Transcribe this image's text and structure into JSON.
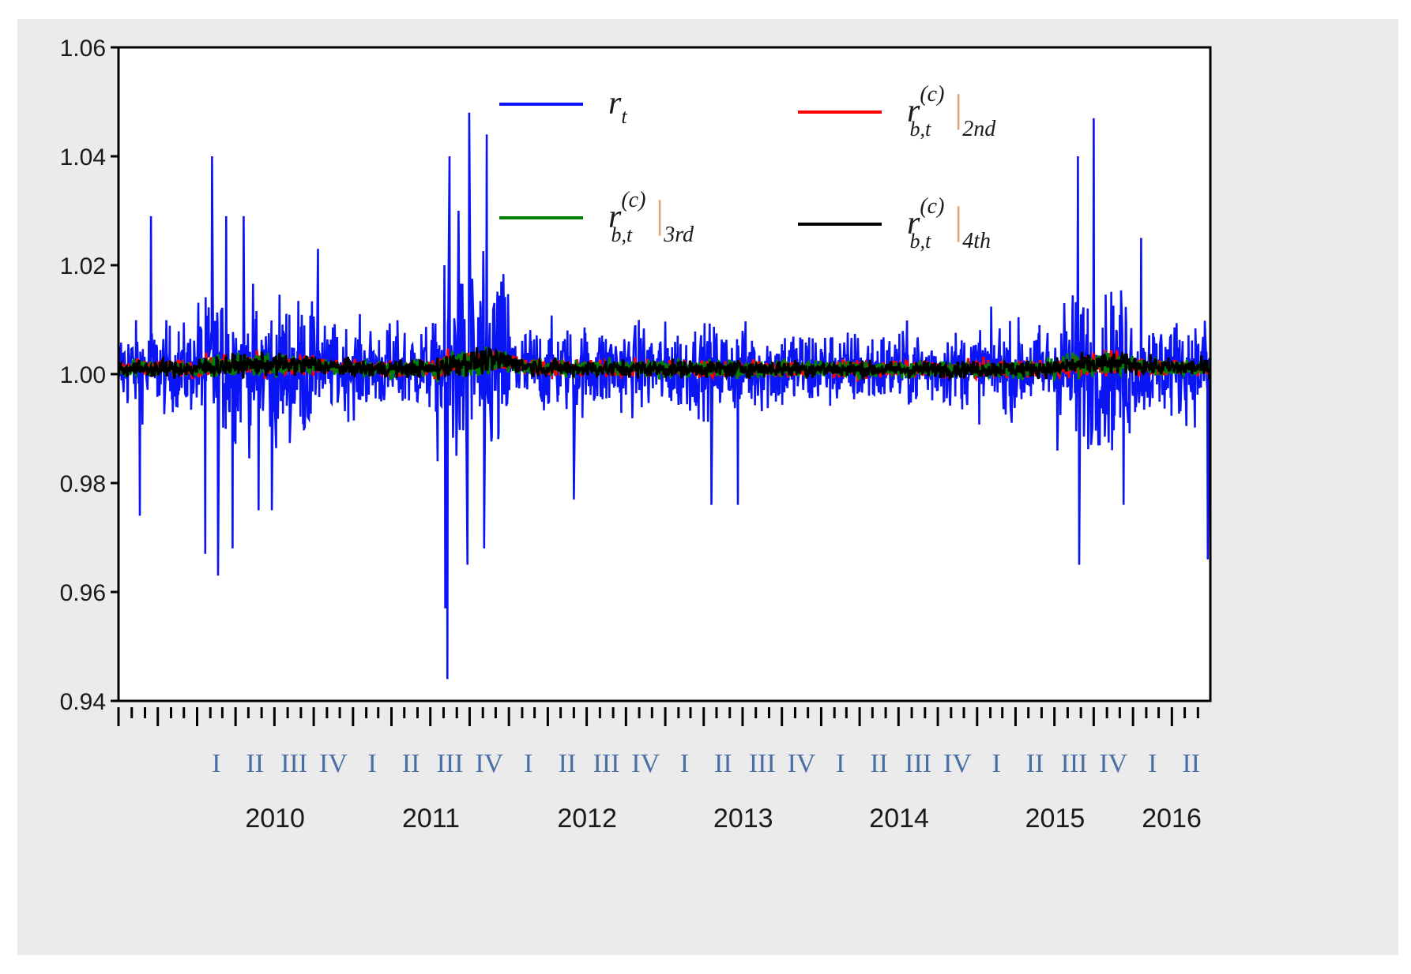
{
  "chart_data": {
    "type": "line",
    "title": "",
    "xlabel": "",
    "ylabel": "",
    "ylim": [
      0.94,
      1.06
    ],
    "yticks": [
      "0.94",
      "0.96",
      "0.98",
      "1.00",
      "1.02",
      "1.04",
      "1.06"
    ],
    "x_range": [
      "2009-07-01",
      "2016-06-30"
    ],
    "grid": false,
    "legend_position": "top",
    "quarter_labels": [
      "I",
      "II",
      "III",
      "IV",
      "I",
      "II",
      "III",
      "IV",
      "I",
      "II",
      "III",
      "IV",
      "I",
      "II",
      "III",
      "IV",
      "I",
      "II",
      "III",
      "IV",
      "I",
      "II",
      "III",
      "IV",
      "I",
      "II"
    ],
    "year_labels": [
      "2010",
      "2011",
      "2012",
      "2013",
      "2014",
      "2015",
      "2016"
    ],
    "volatility_regimes": [
      {
        "from": "2009-07-01",
        "to": "2009-12-31",
        "amp": 0.008
      },
      {
        "from": "2010-01-01",
        "to": "2010-09-30",
        "amp": 0.013
      },
      {
        "from": "2010-10-01",
        "to": "2011-07-15",
        "amp": 0.008
      },
      {
        "from": "2011-07-15",
        "to": "2011-12-31",
        "amp": 0.018
      },
      {
        "from": "2012-01-01",
        "to": "2012-12-31",
        "amp": 0.008
      },
      {
        "from": "2013-01-01",
        "to": "2013-12-31",
        "amp": 0.008
      },
      {
        "from": "2014-01-01",
        "to": "2014-12-31",
        "amp": 0.007
      },
      {
        "from": "2015-01-01",
        "to": "2015-06-30",
        "amp": 0.008
      },
      {
        "from": "2015-07-01",
        "to": "2015-12-31",
        "amp": 0.014
      },
      {
        "from": "2016-01-01",
        "to": "2016-06-30",
        "amp": 0.009
      }
    ],
    "series": [
      {
        "name": "r_t",
        "symbol": "r",
        "subscript": "t",
        "color": "#0a14f5",
        "extremes": [
          {
            "x": "2009-08-20",
            "y": 0.974
          },
          {
            "x": "2009-09-15",
            "y": 1.029
          },
          {
            "x": "2010-01-20",
            "y": 0.967
          },
          {
            "x": "2010-02-05",
            "y": 1.04
          },
          {
            "x": "2010-02-20",
            "y": 0.963
          },
          {
            "x": "2010-03-10",
            "y": 1.029
          },
          {
            "x": "2010-03-25",
            "y": 0.968
          },
          {
            "x": "2010-04-20",
            "y": 1.029
          },
          {
            "x": "2010-05-25",
            "y": 0.975
          },
          {
            "x": "2010-06-25",
            "y": 0.975
          },
          {
            "x": "2010-10-10",
            "y": 1.023
          },
          {
            "x": "2011-08-05",
            "y": 0.957
          },
          {
            "x": "2011-08-10",
            "y": 0.944
          },
          {
            "x": "2011-08-15",
            "y": 1.04
          },
          {
            "x": "2011-09-05",
            "y": 1.03
          },
          {
            "x": "2011-09-25",
            "y": 0.965
          },
          {
            "x": "2011-09-30",
            "y": 1.048
          },
          {
            "x": "2011-11-05",
            "y": 0.968
          },
          {
            "x": "2011-11-10",
            "y": 1.044
          },
          {
            "x": "2012-06-01",
            "y": 0.977
          },
          {
            "x": "2013-04-20",
            "y": 0.976
          },
          {
            "x": "2013-06-20",
            "y": 0.976
          },
          {
            "x": "2015-08-25",
            "y": 1.04
          },
          {
            "x": "2015-08-28",
            "y": 0.965
          },
          {
            "x": "2015-10-01",
            "y": 1.047
          },
          {
            "x": "2015-12-10",
            "y": 0.976
          },
          {
            "x": "2016-01-20",
            "y": 1.025
          },
          {
            "x": "2016-06-25",
            "y": 0.966
          }
        ]
      },
      {
        "name": "r_{b,t}^{(c)} |_{2nd}",
        "symbol": "r",
        "subscript": "b,t",
        "superscript": "(c)",
        "order": "2nd",
        "color": "#ff0000",
        "approx_level": 1.001,
        "approx_band": 0.002
      },
      {
        "name": "r_{b,t}^{(c)} |_{3rd}",
        "symbol": "r",
        "subscript": "b,t",
        "superscript": "(c)",
        "order": "3rd",
        "color": "#008000",
        "approx_level": 1.001,
        "approx_band": 0.002
      },
      {
        "name": "r_{b,t}^{(c)} |_{4th}",
        "symbol": "r",
        "subscript": "b,t",
        "superscript": "(c)",
        "order": "4th",
        "color": "#000000",
        "approx_level": 1.001,
        "approx_band": 0.002
      }
    ]
  }
}
